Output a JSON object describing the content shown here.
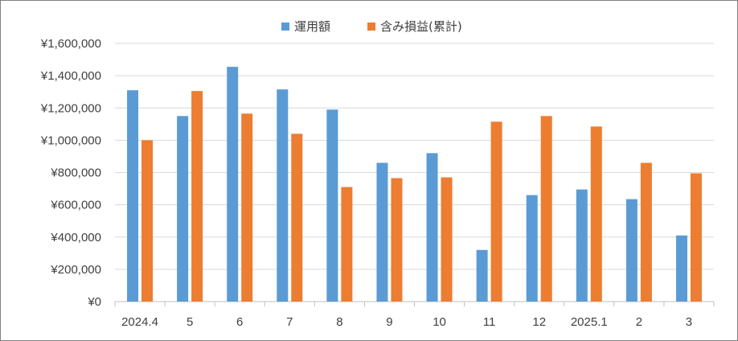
{
  "chart_data": {
    "type": "bar",
    "categories": [
      "2024.4",
      "5",
      "6",
      "7",
      "8",
      "9",
      "10",
      "11",
      "12",
      "2025.1",
      "2",
      "3"
    ],
    "series": [
      {
        "name": "運用額",
        "color": "#5b9bd5",
        "values": [
          1310000,
          1150000,
          1455000,
          1315000,
          1190000,
          860000,
          920000,
          320000,
          660000,
          695000,
          635000,
          410000
        ]
      },
      {
        "name": "含み損益(累計)",
        "color": "#ed7d31",
        "values": [
          1000000,
          1305000,
          1165000,
          1040000,
          710000,
          765000,
          770000,
          1115000,
          1150000,
          1085000,
          860000,
          795000
        ]
      }
    ],
    "yticks": [
      "¥0",
      "¥200,000",
      "¥400,000",
      "¥600,000",
      "¥800,000",
      "¥1,000,000",
      "¥1,200,000",
      "¥1,400,000",
      "¥1,600,000"
    ],
    "ylim": [
      0,
      1600000
    ],
    "grid": true,
    "legend_position": "top"
  }
}
